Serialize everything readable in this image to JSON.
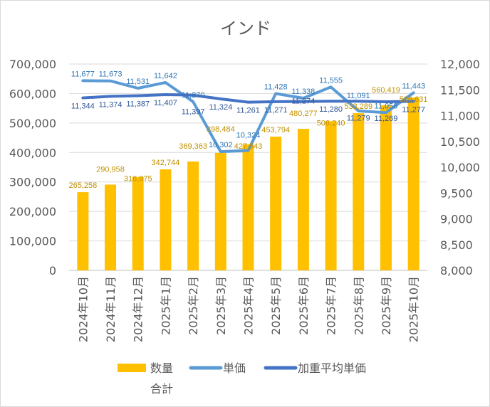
{
  "chart_data": {
    "type": "bar+line",
    "title": "インド",
    "categories": [
      "2024年10月",
      "2024年11月",
      "2024年12月",
      "2025年1月",
      "2025年2月",
      "2025年3月",
      "2025年4月",
      "2025年5月",
      "2025年6月",
      "2025年7月",
      "2025年8月",
      "2025年9月",
      "2025年10月"
    ],
    "y_left": {
      "range": [
        0,
        700000
      ],
      "ticks": [
        "0",
        "100,000",
        "200,000",
        "300,000",
        "400,000",
        "500,000",
        "600,000",
        "700,000"
      ]
    },
    "y_right": {
      "range": [
        8000,
        12000
      ],
      "ticks": [
        "8,000",
        "8,500",
        "9,000",
        "9,500",
        "10,000",
        "10,500",
        "11,000",
        "11,500",
        "12,000"
      ]
    },
    "grid": true,
    "legend_position": "bottom",
    "series": [
      {
        "name": "数量合計",
        "type": "bar",
        "axis": "left",
        "color": "#FFC000",
        "label_color": "#C09000",
        "values": [
          265258,
          290958,
          316975,
          342744,
          369363,
          398484,
          427543,
          453794,
          480277,
          506240,
          533289,
          560419,
          586631
        ]
      },
      {
        "name": "単価",
        "type": "line",
        "axis": "right",
        "color": "#5B9BD5",
        "label_color": "#2E75B6",
        "values": [
          11677,
          11673,
          11531,
          11642,
          11270,
          10302,
          10324,
          11428,
          11338,
          11555,
          11091,
          11058,
          11443
        ]
      },
      {
        "name": "加重平均単価",
        "type": "line",
        "axis": "right",
        "color": "#4472C4",
        "label_color": "#2F5597",
        "values": [
          11344,
          11374,
          11387,
          11407,
          11397,
          11324,
          11261,
          11271,
          11274,
          11280,
          11279,
          11269,
          11277
        ]
      }
    ],
    "legend": [
      {
        "label_line1": "数量",
        "label_line2": "合計"
      },
      {
        "label_line1": "単価"
      },
      {
        "label_line1": "加重平均単価"
      }
    ]
  }
}
